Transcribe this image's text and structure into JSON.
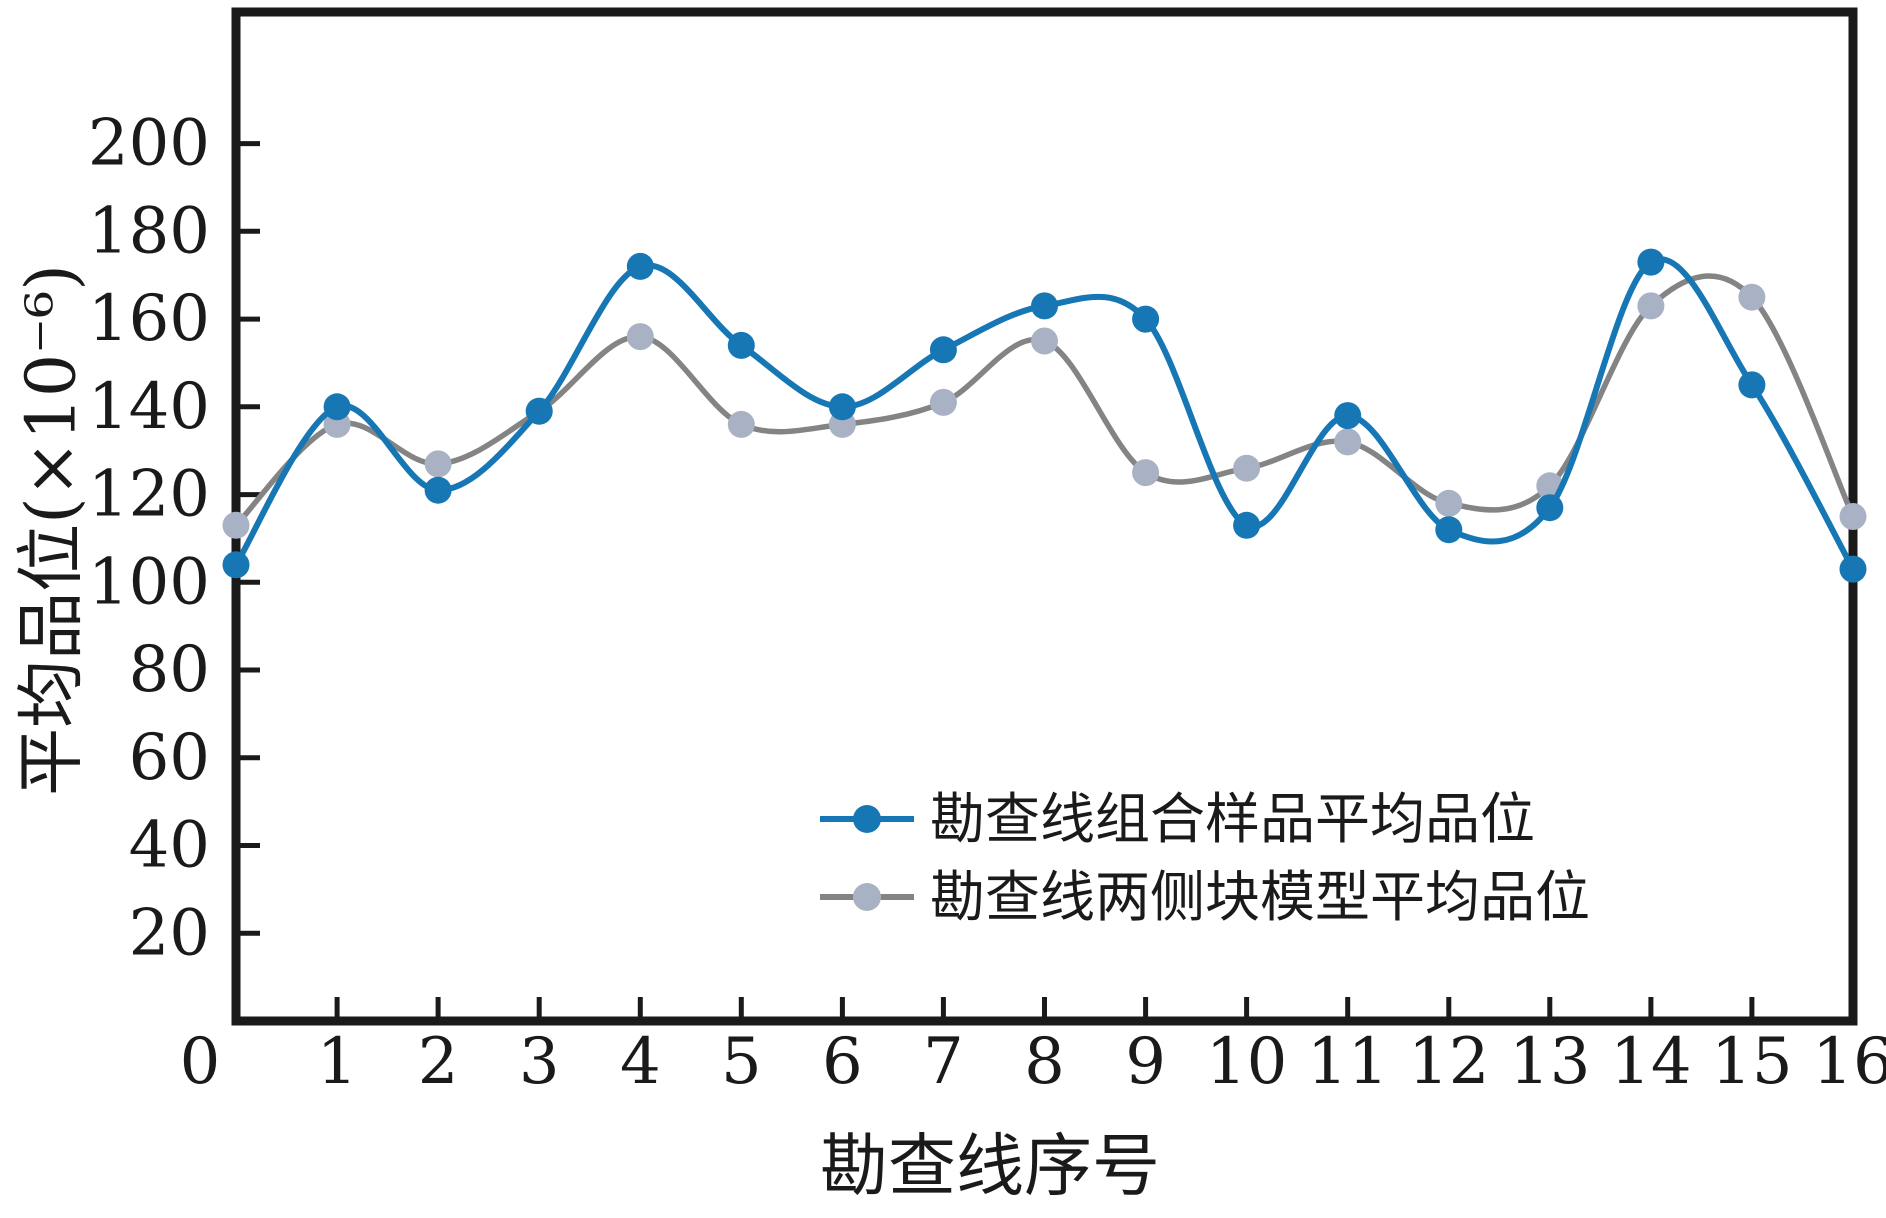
{
  "figure": {
    "title": "",
    "xlabel": "勘查线序号",
    "ylabel": "平均品位(×10⁻⁶)"
  },
  "chart_data": {
    "type": "line",
    "title": "",
    "xlabel": "勘查线序号",
    "ylabel": "平均品位(×10⁻⁶)",
    "x": [
      0,
      1,
      2,
      3,
      4,
      5,
      6,
      7,
      8,
      9,
      10,
      11,
      12,
      13,
      14,
      15,
      16
    ],
    "xlim": [
      0,
      16
    ],
    "ylim": [
      0,
      230
    ],
    "xticks": [
      0,
      1,
      2,
      3,
      4,
      5,
      6,
      7,
      8,
      9,
      10,
      11,
      12,
      13,
      14,
      15,
      16
    ],
    "yticks": [
      20,
      40,
      60,
      80,
      100,
      120,
      140,
      160,
      180,
      200
    ],
    "grid": false,
    "legend_position": "inside lower right",
    "smoothing": "catmull-rom spline",
    "series": [
      {
        "name": "勘查线组合样品平均品位",
        "line_color": "#1777b4",
        "marker_color": "#1777b4",
        "marker": "circle",
        "values": [
          104,
          140,
          121,
          139,
          172,
          154,
          140,
          153,
          163,
          160,
          113,
          138,
          112,
          117,
          173,
          145,
          103
        ]
      },
      {
        "name": "勘查线两侧块模型平均品位",
        "line_color": "#848484",
        "marker_color": "#a9b2c4",
        "marker": "circle",
        "values": [
          113,
          136,
          127,
          139,
          156,
          136,
          136,
          141,
          155,
          125,
          126,
          132,
          118,
          122,
          163,
          165,
          115
        ]
      }
    ],
    "colors": {
      "axis": "#1a1a1a",
      "background": "#ffffff"
    }
  }
}
